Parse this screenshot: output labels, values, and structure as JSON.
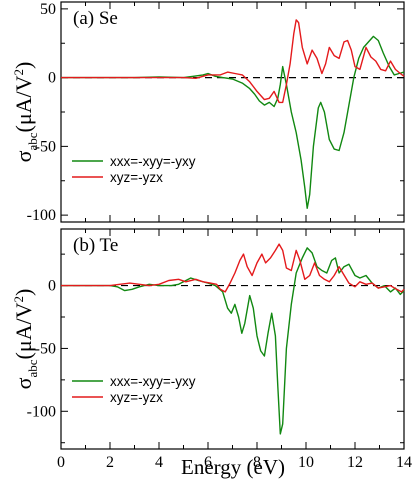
{
  "chart_data": {
    "type": "line",
    "colors": {
      "green": "#118811",
      "red": "#e41a1c",
      "zero_line": "#000000"
    },
    "xlabel": "Energy (eV)",
    "xlim": [
      0,
      14
    ],
    "x_ticks": [
      "0",
      "2",
      "4",
      "6",
      "8",
      "10",
      "12",
      "14"
    ],
    "ylabel": {
      "main": "σ",
      "sub": "abc",
      "units": "(μA/V",
      "sup": "2",
      "close": ")"
    },
    "panels": [
      {
        "label": "(a) Se",
        "ylim": [
          -105,
          55
        ],
        "y_ticks": [
          50,
          0,
          -50,
          -100
        ],
        "y_tick_labels": [
          "50",
          "0",
          "-50",
          "-100"
        ],
        "series": [
          {
            "name": "xxx=-xyy=-yxy",
            "color": "#118811",
            "points": [
              [
                0,
                0
              ],
              [
                2,
                0
              ],
              [
                3,
                0
              ],
              [
                4,
                0.5
              ],
              [
                5,
                0
              ],
              [
                5.4,
                1
              ],
              [
                5.8,
                2
              ],
              [
                6.0,
                3
              ],
              [
                6.3,
                1
              ],
              [
                6.6,
                0
              ],
              [
                7.0,
                -1
              ],
              [
                7.4,
                -4
              ],
              [
                7.7,
                -8
              ],
              [
                7.9,
                -12
              ],
              [
                8.1,
                -17
              ],
              [
                8.3,
                -20
              ],
              [
                8.5,
                -18
              ],
              [
                8.7,
                -21
              ],
              [
                8.85,
                -15
              ],
              [
                8.95,
                -5
              ],
              [
                9.05,
                8
              ],
              [
                9.2,
                -5
              ],
              [
                9.4,
                -25
              ],
              [
                9.6,
                -40
              ],
              [
                9.8,
                -60
              ],
              [
                9.95,
                -80
              ],
              [
                10.05,
                -95
              ],
              [
                10.15,
                -85
              ],
              [
                10.3,
                -50
              ],
              [
                10.5,
                -22
              ],
              [
                10.6,
                -18
              ],
              [
                10.75,
                -25
              ],
              [
                10.95,
                -45
              ],
              [
                11.15,
                -52
              ],
              [
                11.35,
                -53
              ],
              [
                11.55,
                -40
              ],
              [
                11.75,
                -20
              ],
              [
                11.95,
                0
              ],
              [
                12.15,
                14
              ],
              [
                12.35,
                22
              ],
              [
                12.55,
                26
              ],
              [
                12.75,
                30
              ],
              [
                12.95,
                27
              ],
              [
                13.15,
                18
              ],
              [
                13.4,
                8
              ],
              [
                13.6,
                2
              ],
              [
                13.8,
                3
              ],
              [
                14,
                4
              ]
            ]
          },
          {
            "name": "xyz=-yzx",
            "color": "#e41a1c",
            "points": [
              [
                0,
                0
              ],
              [
                2,
                0
              ],
              [
                3,
                0
              ],
              [
                4,
                0
              ],
              [
                5,
                0
              ],
              [
                5.5,
                -0.5
              ],
              [
                6.0,
                2
              ],
              [
                6.5,
                2
              ],
              [
                6.8,
                4
              ],
              [
                7.1,
                3
              ],
              [
                7.4,
                2
              ],
              [
                7.7,
                -3
              ],
              [
                8.0,
                -10
              ],
              [
                8.3,
                -16
              ],
              [
                8.5,
                -15
              ],
              [
                8.7,
                -10
              ],
              [
                8.9,
                -18
              ],
              [
                9.05,
                -18
              ],
              [
                9.2,
                -5
              ],
              [
                9.35,
                10
              ],
              [
                9.5,
                32
              ],
              [
                9.6,
                42
              ],
              [
                9.7,
                40
              ],
              [
                9.85,
                22
              ],
              [
                10.05,
                10
              ],
              [
                10.25,
                20
              ],
              [
                10.45,
                14
              ],
              [
                10.65,
                3
              ],
              [
                10.8,
                10
              ],
              [
                10.95,
                22
              ],
              [
                11.15,
                16
              ],
              [
                11.35,
                14
              ],
              [
                11.55,
                26
              ],
              [
                11.7,
                27
              ],
              [
                11.85,
                20
              ],
              [
                12.0,
                8
              ],
              [
                12.2,
                6
              ],
              [
                12.45,
                22
              ],
              [
                12.65,
                15
              ],
              [
                12.85,
                12
              ],
              [
                13.05,
                6
              ],
              [
                13.25,
                5
              ],
              [
                13.45,
                12
              ],
              [
                13.65,
                6
              ],
              [
                13.85,
                3
              ],
              [
                14,
                1
              ]
            ]
          }
        ]
      },
      {
        "label": "(b) Te",
        "ylim": [
          -130,
          45
        ],
        "y_ticks": [
          0,
          -50,
          -100
        ],
        "y_tick_labels": [
          "0",
          "-50",
          "-100"
        ],
        "series": [
          {
            "name": "xxx=-xyy=-yxy",
            "color": "#118811",
            "points": [
              [
                0,
                0
              ],
              [
                2,
                0
              ],
              [
                2.3,
                -1
              ],
              [
                2.6,
                -4
              ],
              [
                2.9,
                -3
              ],
              [
                3.2,
                -1
              ],
              [
                3.6,
                1
              ],
              [
                4,
                0
              ],
              [
                4.5,
                0
              ],
              [
                4.8,
                1
              ],
              [
                5.1,
                4
              ],
              [
                5.3,
                6
              ],
              [
                5.6,
                4
              ],
              [
                6.0,
                2
              ],
              [
                6.3,
                0
              ],
              [
                6.6,
                -5
              ],
              [
                6.8,
                -18
              ],
              [
                6.95,
                -22
              ],
              [
                7.1,
                -15
              ],
              [
                7.25,
                -25
              ],
              [
                7.38,
                -38
              ],
              [
                7.5,
                -30
              ],
              [
                7.7,
                -8
              ],
              [
                7.85,
                -18
              ],
              [
                8.0,
                -40
              ],
              [
                8.15,
                -52
              ],
              [
                8.3,
                -56
              ],
              [
                8.45,
                -38
              ],
              [
                8.6,
                -22
              ],
              [
                8.75,
                -40
              ],
              [
                8.85,
                -80
              ],
              [
                8.95,
                -118
              ],
              [
                9.05,
                -110
              ],
              [
                9.2,
                -50
              ],
              [
                9.4,
                -15
              ],
              [
                9.6,
                10
              ],
              [
                9.85,
                22
              ],
              [
                10.05,
                30
              ],
              [
                10.25,
                26
              ],
              [
                10.45,
                15
              ],
              [
                10.65,
                12
              ],
              [
                10.85,
                10
              ],
              [
                11.05,
                20
              ],
              [
                11.2,
                22
              ],
              [
                11.35,
                10
              ],
              [
                11.55,
                15
              ],
              [
                11.75,
                17
              ],
              [
                12.0,
                8
              ],
              [
                12.2,
                6
              ],
              [
                12.45,
                8
              ],
              [
                12.7,
                2
              ],
              [
                12.95,
                -2
              ],
              [
                13.2,
                0
              ],
              [
                13.45,
                -5
              ],
              [
                13.65,
                -2
              ],
              [
                13.85,
                -7
              ],
              [
                14,
                -4
              ]
            ]
          },
          {
            "name": "xyz=-yzx",
            "color": "#e41a1c",
            "points": [
              [
                0,
                0
              ],
              [
                2,
                0
              ],
              [
                2.4,
                1
              ],
              [
                2.8,
                2
              ],
              [
                3.2,
                1
              ],
              [
                3.6,
                0
              ],
              [
                4.0,
                1
              ],
              [
                4.4,
                4
              ],
              [
                4.8,
                5
              ],
              [
                5.1,
                3
              ],
              [
                5.5,
                5
              ],
              [
                5.8,
                3
              ],
              [
                6.1,
                2
              ],
              [
                6.35,
                1
              ],
              [
                6.5,
                -3
              ],
              [
                6.7,
                -5
              ],
              [
                6.9,
                2
              ],
              [
                7.1,
                10
              ],
              [
                7.3,
                20
              ],
              [
                7.45,
                25
              ],
              [
                7.6,
                15
              ],
              [
                7.8,
                8
              ],
              [
                8.0,
                18
              ],
              [
                8.2,
                25
              ],
              [
                8.35,
                18
              ],
              [
                8.55,
                22
              ],
              [
                8.75,
                28
              ],
              [
                8.9,
                33
              ],
              [
                9.05,
                28
              ],
              [
                9.2,
                14
              ],
              [
                9.4,
                12
              ],
              [
                9.6,
                28
              ],
              [
                9.75,
                20
              ],
              [
                9.95,
                5
              ],
              [
                10.15,
                8
              ],
              [
                10.35,
                18
              ],
              [
                10.55,
                8
              ],
              [
                10.75,
                5
              ],
              [
                10.95,
                3
              ],
              [
                11.15,
                8
              ],
              [
                11.35,
                15
              ],
              [
                11.5,
                10
              ],
              [
                11.75,
                2
              ],
              [
                12.0,
                -1
              ],
              [
                12.2,
                3
              ],
              [
                12.45,
                1
              ],
              [
                12.7,
                2
              ],
              [
                12.95,
                -2
              ],
              [
                13.2,
                -1
              ],
              [
                13.45,
                0
              ],
              [
                13.7,
                -3
              ],
              [
                13.9,
                -5
              ],
              [
                14,
                -3
              ]
            ]
          }
        ]
      }
    ]
  }
}
